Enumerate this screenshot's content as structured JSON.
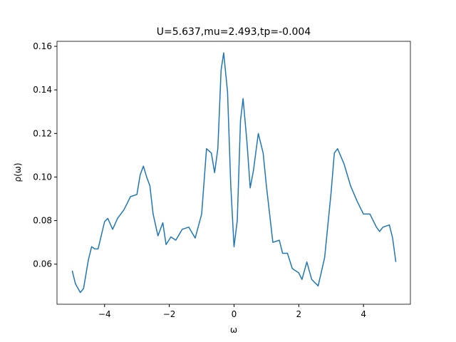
{
  "chart_data": {
    "type": "line",
    "title": "U=5.637,mu=2.493,tp=-0.004",
    "xlabel": "ω",
    "ylabel": "ρ(ω)",
    "x": [
      -5.0,
      -4.9,
      -4.75,
      -4.65,
      -4.5,
      -4.4,
      -4.3,
      -4.2,
      -4.0,
      -3.9,
      -3.75,
      -3.6,
      -3.4,
      -3.2,
      -3.0,
      -2.9,
      -2.8,
      -2.7,
      -2.6,
      -2.5,
      -2.35,
      -2.2,
      -2.1,
      -1.95,
      -1.8,
      -1.6,
      -1.4,
      -1.2,
      -1.0,
      -0.85,
      -0.7,
      -0.6,
      -0.5,
      -0.4,
      -0.32,
      -0.2,
      -0.1,
      0.0,
      0.1,
      0.2,
      0.28,
      0.4,
      0.5,
      0.6,
      0.75,
      0.9,
      1.0,
      1.2,
      1.4,
      1.5,
      1.65,
      1.8,
      2.0,
      2.1,
      2.25,
      2.4,
      2.6,
      2.8,
      3.0,
      3.1,
      3.2,
      3.4,
      3.6,
      3.8,
      4.0,
      4.2,
      4.4,
      4.5,
      4.6,
      4.8,
      4.9,
      5.0
    ],
    "series": [
      {
        "name": "rho",
        "color": "#1f77b4",
        "values": [
          0.057,
          0.051,
          0.047,
          0.0488,
          0.062,
          0.068,
          0.067,
          0.067,
          0.0795,
          0.081,
          0.076,
          0.081,
          0.085,
          0.091,
          0.092,
          0.101,
          0.105,
          0.1,
          0.096,
          0.083,
          0.073,
          0.079,
          0.069,
          0.0725,
          0.071,
          0.076,
          0.077,
          0.072,
          0.083,
          0.113,
          0.111,
          0.102,
          0.113,
          0.149,
          0.157,
          0.139,
          0.096,
          0.068,
          0.08,
          0.126,
          0.136,
          0.116,
          0.095,
          0.103,
          0.12,
          0.111,
          0.096,
          0.07,
          0.071,
          0.065,
          0.065,
          0.058,
          0.056,
          0.053,
          0.061,
          0.053,
          0.05,
          0.063,
          0.093,
          0.111,
          0.113,
          0.106,
          0.096,
          0.089,
          0.083,
          0.083,
          0.077,
          0.075,
          0.077,
          0.078,
          0.072,
          0.061
        ]
      }
    ],
    "xlim": [
      -5.47,
      5.45
    ],
    "ylim": [
      0.0416,
      0.1623
    ],
    "xticks": [
      {
        "value": -4,
        "label": "−4"
      },
      {
        "value": -2,
        "label": "−2"
      },
      0,
      2,
      4
    ],
    "yticks": [
      0.06,
      0.08,
      {
        "value": 0.1,
        "label": "0.10"
      },
      0.12,
      0.14,
      0.16
    ]
  }
}
